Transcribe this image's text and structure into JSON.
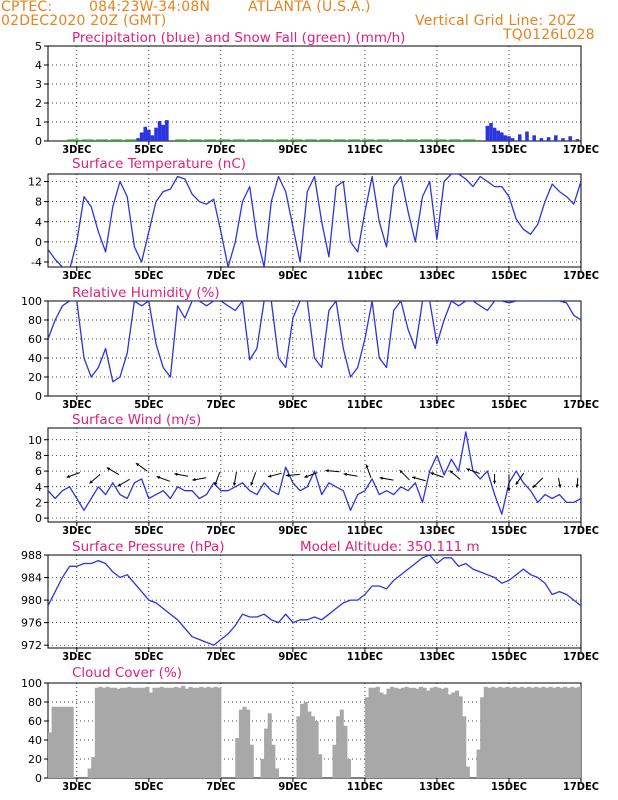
{
  "header": {
    "source": "CPTEC:",
    "coords": "084:23W-34:08N",
    "location": "ATLANTA (U.S.A.)",
    "init_time": "02DEC2020 20Z (GMT)",
    "grid_note": "Vertical Grid Line: 20Z",
    "model_code": "TQ0126L028"
  },
  "colors": {
    "header": "#e8821e",
    "titles": "#e0207c",
    "series": "#2a35e0",
    "snow": "#19b219",
    "cloud": "#a8a8a8",
    "grid": "#000000"
  },
  "x_tick_labels": [
    "3DEC",
    "5DEC",
    "7DEC",
    "9DEC",
    "11DEC",
    "13DEC",
    "15DEC",
    "17DEC"
  ],
  "chart_data": [
    {
      "type": "bar",
      "title": "Precipitation (blue) and Snow Fall (green) (mm/h)",
      "ylim": [
        0,
        5
      ],
      "yticks": [
        0,
        1,
        2,
        3,
        4,
        5
      ],
      "x_unit": "day of December 2020",
      "series": [
        {
          "color": "blue",
          "x": [
            4.7,
            4.8,
            4.9,
            5.0,
            5.1,
            5.2,
            5.3,
            5.4,
            5.5
          ],
          "values": [
            0.15,
            0.45,
            0.75,
            0.6,
            0.3,
            0.7,
            1.05,
            0.85,
            1.1
          ]
        },
        {
          "color": "blue",
          "x": [
            14.4,
            14.5,
            14.6,
            14.7,
            14.8,
            14.9,
            15.0,
            15.1,
            15.3,
            15.5,
            15.7,
            15.9,
            16.1,
            16.3,
            16.5,
            16.7,
            16.9
          ],
          "values": [
            0.8,
            0.95,
            0.7,
            0.55,
            0.45,
            0.3,
            0.25,
            0.15,
            0.35,
            0.5,
            0.3,
            0.15,
            0.2,
            0.3,
            0.15,
            0.25,
            0.1
          ]
        },
        {
          "color": "green",
          "x": [
            2.9,
            3.3,
            3.7,
            4.1,
            4.5,
            5.9,
            6.3,
            6.7,
            7.1,
            7.5,
            7.9,
            8.3,
            8.7,
            9.1,
            9.5,
            9.9,
            10.3,
            10.7,
            11.1,
            11.5,
            11.9,
            12.3,
            12.7,
            13.1,
            13.5,
            13.9
          ],
          "values": [
            0.03,
            0.03,
            0.03,
            0.03,
            0.03,
            0.03,
            0.03,
            0.03,
            0.03,
            0.03,
            0.03,
            0.03,
            0.03,
            0.03,
            0.03,
            0.03,
            0.03,
            0.03,
            0.03,
            0.03,
            0.03,
            0.03,
            0.03,
            0.03,
            0.03,
            0.03
          ]
        }
      ]
    },
    {
      "type": "line",
      "title": "Surface Temperature (nC)",
      "ylim": [
        -5,
        13.5
      ],
      "yticks": [
        -4,
        0,
        4,
        8,
        12
      ],
      "x": [
        2.2,
        2.4,
        2.6,
        2.8,
        3.0,
        3.2,
        3.4,
        3.6,
        3.8,
        4.0,
        4.2,
        4.4,
        4.6,
        4.8,
        5.0,
        5.2,
        5.4,
        5.6,
        5.8,
        6.0,
        6.2,
        6.4,
        6.6,
        6.8,
        7.0,
        7.2,
        7.4,
        7.6,
        7.8,
        8.0,
        8.2,
        8.4,
        8.6,
        8.8,
        9.0,
        9.2,
        9.4,
        9.6,
        9.8,
        10.0,
        10.2,
        10.4,
        10.6,
        10.8,
        11.0,
        11.2,
        11.4,
        11.6,
        11.8,
        12.0,
        12.2,
        12.4,
        12.6,
        12.8,
        13.0,
        13.2,
        13.4,
        13.6,
        13.8,
        14.0,
        14.2,
        14.4,
        14.6,
        14.8,
        15.0,
        15.2,
        15.4,
        15.6,
        15.8,
        16.0,
        16.2,
        16.4,
        16.6,
        16.8,
        17.0
      ],
      "y": [
        -1.5,
        -3.5,
        -5.0,
        -5.5,
        0.0,
        9.0,
        7.0,
        2.0,
        -2.0,
        7.0,
        12.0,
        9.0,
        -1.0,
        -4.0,
        2.0,
        8.0,
        10.0,
        10.5,
        13.0,
        12.5,
        9.5,
        8.0,
        7.5,
        8.5,
        2.0,
        -5.0,
        0.0,
        8.0,
        11.0,
        1.0,
        -5.0,
        8.0,
        13.0,
        10.0,
        3.0,
        -4.0,
        10.0,
        13.0,
        4.0,
        -3.0,
        11.0,
        12.0,
        0.0,
        -2.0,
        6.0,
        13.0,
        4.0,
        -1.0,
        11.0,
        13.0,
        6.0,
        0.0,
        9.0,
        12.0,
        0.5,
        12.0,
        13.5,
        13.5,
        12.5,
        11.0,
        13.0,
        12.0,
        11.0,
        11.0,
        9.0,
        4.5,
        2.5,
        1.5,
        3.5,
        8.0,
        11.5,
        10.0,
        9.0,
        7.5,
        12.0
      ]
    },
    {
      "type": "line",
      "title": "Relative Humidity (%)",
      "ylim": [
        0,
        100
      ],
      "yticks": [
        0,
        20,
        40,
        60,
        80,
        100
      ],
      "x": [
        2.2,
        2.4,
        2.6,
        2.8,
        3.0,
        3.2,
        3.4,
        3.6,
        3.8,
        4.0,
        4.2,
        4.4,
        4.6,
        4.8,
        5.0,
        5.2,
        5.4,
        5.6,
        5.8,
        6.0,
        6.2,
        6.4,
        6.6,
        6.8,
        7.0,
        7.2,
        7.4,
        7.6,
        7.8,
        8.0,
        8.2,
        8.4,
        8.6,
        8.8,
        9.0,
        9.2,
        9.4,
        9.6,
        9.8,
        10.0,
        10.2,
        10.4,
        10.6,
        10.8,
        11.0,
        11.2,
        11.4,
        11.6,
        11.8,
        12.0,
        12.2,
        12.4,
        12.6,
        12.8,
        13.0,
        13.2,
        13.4,
        13.6,
        13.8,
        14.0,
        14.2,
        14.4,
        14.6,
        14.8,
        15.0,
        15.2,
        15.4,
        15.6,
        15.8,
        16.0,
        16.2,
        16.4,
        16.6,
        16.8,
        17.0
      ],
      "y": [
        60,
        80,
        95,
        100,
        100,
        40,
        20,
        30,
        50,
        15,
        20,
        45,
        100,
        95,
        100,
        55,
        30,
        20,
        95,
        82,
        100,
        100,
        95,
        100,
        100,
        95,
        90,
        100,
        38,
        50,
        100,
        100,
        40,
        30,
        82,
        100,
        100,
        40,
        30,
        90,
        100,
        50,
        20,
        30,
        60,
        100,
        40,
        30,
        90,
        100,
        70,
        50,
        100,
        100,
        55,
        80,
        100,
        95,
        100,
        100,
        95,
        90,
        100,
        100,
        98,
        100,
        100,
        100,
        100,
        100,
        100,
        100,
        98,
        85,
        80
      ]
    },
    {
      "type": "line",
      "title": "Surface Wind (m/s)",
      "ylim": [
        -0.5,
        11.5
      ],
      "yticks": [
        0,
        2,
        4,
        6,
        8,
        10
      ],
      "x": [
        2.2,
        2.4,
        2.6,
        2.8,
        3.0,
        3.2,
        3.4,
        3.6,
        3.8,
        4.0,
        4.2,
        4.4,
        4.6,
        4.8,
        5.0,
        5.2,
        5.4,
        5.6,
        5.8,
        6.0,
        6.2,
        6.4,
        6.6,
        6.8,
        7.0,
        7.2,
        7.4,
        7.6,
        7.8,
        8.0,
        8.2,
        8.4,
        8.6,
        8.8,
        9.0,
        9.2,
        9.4,
        9.6,
        9.8,
        10.0,
        10.2,
        10.4,
        10.6,
        10.8,
        11.0,
        11.2,
        11.4,
        11.6,
        11.8,
        12.0,
        12.2,
        12.4,
        12.6,
        12.8,
        13.0,
        13.2,
        13.4,
        13.6,
        13.8,
        14.0,
        14.2,
        14.4,
        14.6,
        14.8,
        15.0,
        15.2,
        15.4,
        15.6,
        15.8,
        16.0,
        16.2,
        16.4,
        16.6,
        16.8,
        17.0
      ],
      "y": [
        3.5,
        2.5,
        3.5,
        4.0,
        2.5,
        1.0,
        2.5,
        4.0,
        3.0,
        4.5,
        3.0,
        2.5,
        4.5,
        5.0,
        2.5,
        3.0,
        3.5,
        2.5,
        4.0,
        3.5,
        3.5,
        2.5,
        3.0,
        4.5,
        3.5,
        3.5,
        4.0,
        4.5,
        3.5,
        3.0,
        4.5,
        3.5,
        3.0,
        6.5,
        4.5,
        3.5,
        4.0,
        6.0,
        3.0,
        4.5,
        4.0,
        3.5,
        1.0,
        3.0,
        3.5,
        5.0,
        3.0,
        3.5,
        3.0,
        4.0,
        3.5,
        4.5,
        2.0,
        6.0,
        8.0,
        5.5,
        7.5,
        6.0,
        11.0,
        6.0,
        5.0,
        6.0,
        3.0,
        0.5,
        4.5,
        6.0,
        4.5,
        3.5,
        2.0,
        3.0,
        2.5,
        3.0,
        2.0,
        2.0,
        2.5
      ],
      "arrows": [
        {
          "x": 2.9,
          "y": 5.5,
          "dir_deg": 200,
          "len": 1
        },
        {
          "x": 3.5,
          "y": 5.0,
          "dir_deg": 220,
          "len": 1
        },
        {
          "x": 4.0,
          "y": 6.0,
          "dir_deg": 150,
          "len": 1
        },
        {
          "x": 4.3,
          "y": 4.5,
          "dir_deg": 210,
          "len": 1
        },
        {
          "x": 4.8,
          "y": 6.5,
          "dir_deg": 145,
          "len": 1
        },
        {
          "x": 5.4,
          "y": 5.0,
          "dir_deg": 160,
          "len": 1
        },
        {
          "x": 5.9,
          "y": 5.5,
          "dir_deg": 170,
          "len": 1
        },
        {
          "x": 6.4,
          "y": 5.0,
          "dir_deg": 190,
          "len": 1
        },
        {
          "x": 6.9,
          "y": 5.0,
          "dir_deg": 250,
          "len": 1
        },
        {
          "x": 7.4,
          "y": 5.0,
          "dir_deg": 260,
          "len": 1
        },
        {
          "x": 7.9,
          "y": 5.0,
          "dir_deg": 250,
          "len": 1
        },
        {
          "x": 8.5,
          "y": 5.5,
          "dir_deg": 195,
          "len": 1
        },
        {
          "x": 9.0,
          "y": 5.5,
          "dir_deg": 185,
          "len": 1
        },
        {
          "x": 9.5,
          "y": 5.5,
          "dir_deg": 200,
          "len": 1
        },
        {
          "x": 10.1,
          "y": 6.0,
          "dir_deg": 175,
          "len": 1
        },
        {
          "x": 10.6,
          "y": 5.5,
          "dir_deg": 170,
          "len": 1
        },
        {
          "x": 11.1,
          "y": 6.0,
          "dir_deg": 110,
          "len": 1
        },
        {
          "x": 11.6,
          "y": 5.0,
          "dir_deg": 170,
          "len": 1
        },
        {
          "x": 12.1,
          "y": 5.5,
          "dir_deg": 135,
          "len": 1
        },
        {
          "x": 12.5,
          "y": 5.0,
          "dir_deg": 165,
          "len": 1
        },
        {
          "x": 13.0,
          "y": 5.5,
          "dir_deg": 160,
          "len": 1
        },
        {
          "x": 13.5,
          "y": 5.5,
          "dir_deg": 140,
          "len": 1
        },
        {
          "x": 14.0,
          "y": 6.0,
          "dir_deg": 160,
          "len": 1
        },
        {
          "x": 14.6,
          "y": 5.0,
          "dir_deg": 270,
          "len": 0.7
        },
        {
          "x": 15.0,
          "y": 4.5,
          "dir_deg": 270,
          "len": 1.2
        },
        {
          "x": 15.3,
          "y": 5.0,
          "dir_deg": 235,
          "len": 1
        },
        {
          "x": 15.8,
          "y": 4.5,
          "dir_deg": 225,
          "len": 1
        },
        {
          "x": 16.4,
          "y": 4.5,
          "dir_deg": 280,
          "len": 0.7
        },
        {
          "x": 16.9,
          "y": 4.5,
          "dir_deg": 265,
          "len": 0.7
        }
      ]
    },
    {
      "type": "line",
      "title": "Surface Pressure (hPa)",
      "annotation": "Model Altitude: 350.111 m",
      "ylim": [
        971.5,
        988
      ],
      "yticks": [
        972,
        976,
        980,
        984,
        988
      ],
      "x": [
        2.2,
        2.4,
        2.6,
        2.8,
        3.0,
        3.2,
        3.4,
        3.6,
        3.8,
        4.0,
        4.2,
        4.4,
        4.6,
        4.8,
        5.0,
        5.2,
        5.4,
        5.6,
        5.8,
        6.0,
        6.2,
        6.4,
        6.6,
        6.8,
        7.0,
        7.2,
        7.4,
        7.6,
        7.8,
        8.0,
        8.2,
        8.4,
        8.6,
        8.8,
        9.0,
        9.2,
        9.4,
        9.6,
        9.8,
        10.0,
        10.2,
        10.4,
        10.6,
        10.8,
        11.0,
        11.2,
        11.4,
        11.6,
        11.8,
        12.0,
        12.2,
        12.4,
        12.6,
        12.8,
        13.0,
        13.2,
        13.4,
        13.6,
        13.8,
        14.0,
        14.2,
        14.4,
        14.6,
        14.8,
        15.0,
        15.2,
        15.4,
        15.6,
        15.8,
        16.0,
        16.2,
        16.4,
        16.6,
        16.8,
        17.0
      ],
      "y": [
        979.0,
        981.5,
        984.0,
        986.0,
        986.0,
        986.5,
        986.5,
        987.0,
        986.5,
        985.0,
        984.0,
        984.5,
        983.0,
        981.5,
        980.0,
        979.5,
        978.5,
        977.5,
        976.5,
        975.0,
        973.5,
        973.0,
        972.5,
        972.0,
        973.0,
        974.0,
        975.5,
        977.5,
        977.0,
        977.0,
        977.5,
        976.5,
        976.0,
        977.5,
        976.0,
        976.5,
        976.5,
        977.0,
        976.5,
        977.5,
        978.5,
        979.5,
        980.0,
        980.0,
        981.0,
        982.5,
        982.5,
        982.0,
        983.5,
        984.5,
        985.5,
        986.5,
        987.5,
        988.0,
        986.5,
        987.5,
        987.5,
        986.0,
        986.5,
        985.5,
        985.0,
        984.5,
        984.0,
        983.0,
        983.5,
        984.5,
        985.5,
        984.5,
        984.0,
        983.0,
        981.0,
        981.5,
        981.0,
        980.0,
        979.0
      ]
    },
    {
      "type": "bar",
      "title": "Cloud Cover (%)",
      "ylim": [
        0,
        100
      ],
      "yticks": [
        0,
        20,
        40,
        60,
        80,
        100
      ],
      "bar_width": 0.1,
      "x": [
        2.25,
        2.35,
        2.45,
        2.55,
        2.65,
        2.75,
        2.85,
        3.35,
        3.45,
        3.55,
        3.65,
        3.75,
        3.85,
        3.95,
        4.05,
        4.15,
        4.25,
        4.35,
        4.45,
        4.55,
        4.65,
        4.75,
        4.85,
        4.95,
        5.05,
        5.15,
        5.25,
        5.35,
        5.45,
        5.55,
        5.65,
        5.75,
        5.85,
        5.95,
        6.05,
        6.15,
        6.25,
        6.35,
        6.45,
        6.55,
        6.65,
        6.75,
        6.85,
        6.95,
        7.45,
        7.55,
        7.65,
        7.75,
        7.85,
        8.15,
        8.25,
        8.35,
        8.45,
        8.55,
        9.15,
        9.25,
        9.35,
        9.45,
        9.55,
        9.65,
        9.75,
        10.15,
        10.25,
        10.35,
        10.45,
        10.55,
        11.05,
        11.15,
        11.25,
        11.35,
        11.45,
        11.55,
        11.65,
        11.75,
        11.85,
        11.95,
        12.05,
        12.15,
        12.25,
        12.35,
        12.45,
        12.55,
        12.65,
        12.75,
        12.85,
        12.95,
        13.05,
        13.15,
        13.25,
        13.35,
        13.45,
        13.55,
        13.65,
        13.75,
        13.85,
        14.15,
        14.25,
        14.35,
        14.45,
        14.55,
        14.65,
        14.75,
        14.85,
        14.95,
        15.05,
        15.15,
        15.25,
        15.35,
        15.45,
        15.55,
        15.65,
        15.75,
        15.85,
        15.95,
        16.05,
        16.15,
        16.25,
        16.35,
        16.45,
        16.55,
        16.65,
        16.75,
        16.85,
        16.95
      ],
      "values": [
        48,
        75,
        75,
        75,
        75,
        75,
        75,
        10,
        22,
        95,
        96,
        95,
        96,
        95,
        95,
        94,
        95,
        95,
        96,
        95,
        95,
        95,
        95,
        96,
        90,
        95,
        95,
        96,
        95,
        95,
        95,
        96,
        95,
        97,
        94,
        96,
        95,
        95,
        96,
        95,
        96,
        95,
        96,
        95,
        42,
        72,
        75,
        72,
        35,
        20,
        52,
        68,
        35,
        10,
        65,
        78,
        80,
        70,
        65,
        60,
        25,
        35,
        65,
        72,
        55,
        20,
        85,
        95,
        95,
        96,
        90,
        88,
        94,
        96,
        95,
        94,
        95,
        96,
        95,
        95,
        94,
        96,
        95,
        92,
        95,
        96,
        95,
        94,
        95,
        88,
        90,
        92,
        86,
        65,
        12,
        30,
        85,
        96,
        95,
        96,
        95,
        96,
        95,
        96,
        95,
        96,
        95,
        96,
        95,
        96,
        95,
        96,
        95,
        96,
        95,
        96,
        95,
        96,
        95,
        96,
        95,
        96,
        95,
        96
      ]
    }
  ]
}
